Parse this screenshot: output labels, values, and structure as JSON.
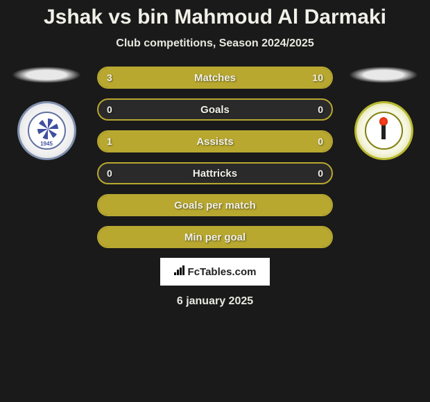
{
  "title": "Jshak vs bin Mahmoud Al Darmaki",
  "subtitle": "Club competitions, Season 2024/2025",
  "player_left": {
    "club_year": "1945"
  },
  "stats": [
    {
      "label": "Matches",
      "left_value": "3",
      "right_value": "10",
      "left_fill_pct": 23,
      "right_fill_pct": 77,
      "show_values": true
    },
    {
      "label": "Goals",
      "left_value": "0",
      "right_value": "0",
      "left_fill_pct": 0,
      "right_fill_pct": 0,
      "show_values": true
    },
    {
      "label": "Assists",
      "left_value": "1",
      "right_value": "0",
      "left_fill_pct": 100,
      "right_fill_pct": 0,
      "show_values": true
    },
    {
      "label": "Hattricks",
      "left_value": "0",
      "right_value": "0",
      "left_fill_pct": 0,
      "right_fill_pct": 0,
      "show_values": true
    },
    {
      "label": "Goals per match",
      "left_value": "",
      "right_value": "",
      "left_fill_pct": 100,
      "right_fill_pct": 0,
      "show_values": false,
      "full_fill": true
    },
    {
      "label": "Min per goal",
      "left_value": "",
      "right_value": "",
      "left_fill_pct": 100,
      "right_fill_pct": 0,
      "show_values": false,
      "full_fill": true
    }
  ],
  "colors": {
    "background": "#1a1a1a",
    "bar_border": "#b8a830",
    "bar_fill": "#b8a830",
    "bar_bg": "#2a2a2a",
    "text": "#f0f0e8"
  },
  "branding": {
    "text": "FcTables.com"
  },
  "date": "6 january 2025"
}
